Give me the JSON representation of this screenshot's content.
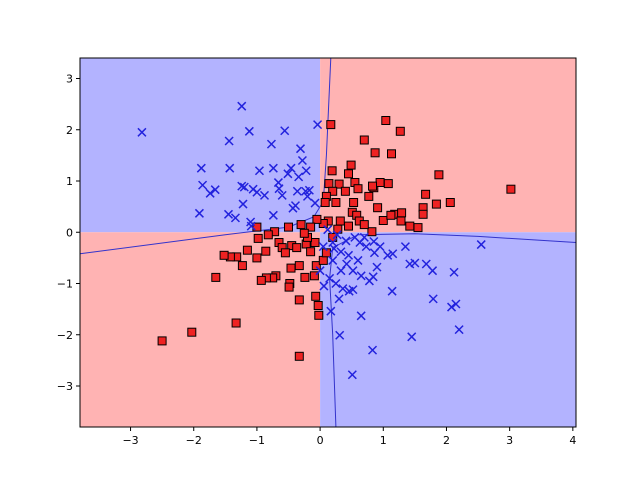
{
  "chart_data": {
    "type": "scatter",
    "title": "",
    "xlabel": "",
    "ylabel": "",
    "xlim": [
      -3.8,
      4.05
    ],
    "ylim": [
      -3.8,
      3.4
    ],
    "xticks": [
      -3,
      -2,
      -1,
      0,
      1,
      2,
      3,
      4
    ],
    "yticks": [
      -3,
      -2,
      -1,
      0,
      1,
      2,
      3
    ],
    "xtick_labels": [
      "−3",
      "−2",
      "−1",
      "0",
      "1",
      "2",
      "3",
      "4"
    ],
    "ytick_labels": [
      "−3",
      "−2",
      "−1",
      "0",
      "1",
      "2",
      "3"
    ],
    "grid": false,
    "legend": "none",
    "decision_regions": {
      "class_negative_color": "#b3b3ff",
      "class_positive_color": "#ffb3b3",
      "boundary_color": "#3333cc",
      "positive_region": "quadrants where x*y > 0 (first and third)",
      "negative_region": "quadrants where x*y < 0 (second and fourth)"
    },
    "series": [
      {
        "marker": "square",
        "color": "#ee2222",
        "edge": "#000000",
        "points": [
          [
            0.17,
            2.1
          ],
          [
            1.04,
            2.18
          ],
          [
            1.27,
            1.97
          ],
          [
            0.7,
            1.8
          ],
          [
            0.87,
            1.55
          ],
          [
            1.13,
            1.53
          ],
          [
            0.49,
            1.31
          ],
          [
            0.45,
            1.14
          ],
          [
            0.19,
            1.2
          ],
          [
            1.88,
            1.12
          ],
          [
            0.14,
            0.95
          ],
          [
            0.3,
            0.94
          ],
          [
            0.55,
            0.97
          ],
          [
            0.85,
            0.87
          ],
          [
            0.95,
            0.97
          ],
          [
            1.08,
            0.95
          ],
          [
            0.83,
            0.9
          ],
          [
            0.6,
            0.85
          ],
          [
            0.4,
            0.8
          ],
          [
            0.2,
            0.8
          ],
          [
            0.1,
            0.7
          ],
          [
            0.25,
            0.58
          ],
          [
            0.53,
            0.58
          ],
          [
            0.77,
            0.7
          ],
          [
            1.67,
            0.74
          ],
          [
            0.08,
            0.58
          ],
          [
            0.51,
            0.39
          ],
          [
            0.91,
            0.48
          ],
          [
            1.63,
            0.48
          ],
          [
            1.84,
            0.55
          ],
          [
            2.06,
            0.58
          ],
          [
            3.02,
            0.84
          ],
          [
            1.18,
            0.35
          ],
          [
            1.29,
            0.38
          ],
          [
            0.32,
            0.22
          ],
          [
            0.13,
            0.22
          ],
          [
            0.28,
            0.06
          ],
          [
            0.45,
            0.12
          ],
          [
            0.58,
            0.33
          ],
          [
            0.62,
            0.22
          ],
          [
            0.82,
            0.01
          ],
          [
            1.0,
            0.23
          ],
          [
            1.28,
            0.22
          ],
          [
            1.42,
            0.12
          ],
          [
            1.55,
            0.09
          ],
          [
            1.63,
            0.35
          ],
          [
            1.12,
            0.33
          ],
          [
            0.7,
            0.15
          ],
          [
            0.05,
            0.17
          ],
          [
            -0.05,
            0.25
          ],
          [
            -0.15,
            0.1
          ],
          [
            -0.3,
            0.15
          ],
          [
            -0.5,
            0.1
          ],
          [
            -0.72,
            0.01
          ],
          [
            -0.65,
            -0.2
          ],
          [
            -0.82,
            -0.05
          ],
          [
            -0.98,
            -0.12
          ],
          [
            -1.15,
            -0.35
          ],
          [
            -1.32,
            -0.48
          ],
          [
            -1.42,
            -0.48
          ],
          [
            -1.52,
            -0.45
          ],
          [
            -0.86,
            -0.37
          ],
          [
            -0.6,
            -0.3
          ],
          [
            -0.45,
            -0.26
          ],
          [
            -0.37,
            -0.3
          ],
          [
            -0.22,
            -0.23
          ],
          [
            -0.08,
            -0.2
          ],
          [
            -0.15,
            -0.38
          ],
          [
            -0.33,
            -0.65
          ],
          [
            -0.46,
            -0.7
          ],
          [
            -0.06,
            -0.65
          ],
          [
            -0.09,
            -0.85
          ],
          [
            -0.24,
            -0.88
          ],
          [
            -0.7,
            -0.85
          ],
          [
            -0.75,
            -0.89
          ],
          [
            -0.85,
            -0.89
          ],
          [
            -0.93,
            -0.94
          ],
          [
            -1.0,
            -0.5
          ],
          [
            -1.23,
            -0.65
          ],
          [
            -1.65,
            -0.88
          ],
          [
            -0.48,
            -1.0
          ],
          [
            -0.49,
            -1.07
          ],
          [
            -0.07,
            -1.25
          ],
          [
            -0.33,
            -1.32
          ],
          [
            -0.03,
            -1.43
          ],
          [
            -0.02,
            -1.62
          ],
          [
            -1.33,
            -1.77
          ],
          [
            -2.03,
            -1.95
          ],
          [
            -2.5,
            -2.12
          ],
          [
            -0.33,
            -2.42
          ],
          [
            0.05,
            -0.55
          ],
          [
            -0.2,
            -0.1
          ],
          [
            -0.55,
            -0.4
          ],
          [
            -1.0,
            0.1
          ],
          [
            -0.25,
            -0.02
          ],
          [
            0.1,
            -0.4
          ],
          [
            0.2,
            -0.1
          ]
        ]
      },
      {
        "marker": "x",
        "color": "#2222dd",
        "points": [
          [
            -1.24,
            2.46
          ],
          [
            -2.82,
            1.95
          ],
          [
            -1.12,
            1.97
          ],
          [
            -0.56,
            1.98
          ],
          [
            -0.04,
            2.1
          ],
          [
            -0.77,
            1.72
          ],
          [
            -0.31,
            1.63
          ],
          [
            -1.44,
            1.78
          ],
          [
            -0.28,
            1.4
          ],
          [
            -1.88,
            1.25
          ],
          [
            -1.43,
            1.25
          ],
          [
            -0.74,
            1.25
          ],
          [
            -0.96,
            1.2
          ],
          [
            -0.46,
            1.25
          ],
          [
            -0.22,
            1.2
          ],
          [
            -0.51,
            1.14
          ],
          [
            -0.34,
            1.08
          ],
          [
            -0.66,
            0.97
          ],
          [
            -1.86,
            0.92
          ],
          [
            -1.74,
            0.76
          ],
          [
            -1.66,
            0.83
          ],
          [
            -1.24,
            0.9
          ],
          [
            -1.2,
            0.88
          ],
          [
            -1.06,
            0.84
          ],
          [
            -1.0,
            0.78
          ],
          [
            -0.88,
            0.72
          ],
          [
            -0.6,
            0.72
          ],
          [
            -0.36,
            0.8
          ],
          [
            -0.23,
            0.8
          ],
          [
            -0.17,
            0.82
          ],
          [
            -1.91,
            0.37
          ],
          [
            -1.45,
            0.35
          ],
          [
            -1.34,
            0.28
          ],
          [
            -1.09,
            0.12
          ],
          [
            -1.1,
            0.2
          ],
          [
            -0.74,
            0.33
          ],
          [
            -0.43,
            0.47
          ],
          [
            -0.39,
            0.52
          ],
          [
            -0.2,
            0.7
          ],
          [
            -0.08,
            0.57
          ],
          [
            -1.22,
            0.55
          ],
          [
            -0.65,
            0.85
          ],
          [
            0.12,
            0.05
          ],
          [
            0.27,
            -0.05
          ],
          [
            0.41,
            -0.17
          ],
          [
            0.55,
            -0.1
          ],
          [
            0.63,
            -0.2
          ],
          [
            0.73,
            -0.28
          ],
          [
            0.85,
            -0.18
          ],
          [
            0.95,
            -0.28
          ],
          [
            1.07,
            -0.45
          ],
          [
            1.35,
            -0.28
          ],
          [
            1.15,
            -0.42
          ],
          [
            1.42,
            -0.62
          ],
          [
            1.5,
            -0.6
          ],
          [
            1.68,
            -0.62
          ],
          [
            1.78,
            -0.75
          ],
          [
            2.12,
            -0.78
          ],
          [
            2.55,
            -0.24
          ],
          [
            0.33,
            -0.38
          ],
          [
            0.2,
            -0.55
          ],
          [
            0.42,
            -0.62
          ],
          [
            0.52,
            -0.75
          ],
          [
            0.65,
            -0.85
          ],
          [
            0.33,
            -0.75
          ],
          [
            0.15,
            -0.9
          ],
          [
            0.06,
            -1.05
          ],
          [
            0.36,
            -1.1
          ],
          [
            0.46,
            -1.15
          ],
          [
            0.52,
            -1.12
          ],
          [
            0.3,
            -1.3
          ],
          [
            0.17,
            -1.54
          ],
          [
            0.78,
            -0.95
          ],
          [
            0.84,
            -0.87
          ],
          [
            0.9,
            -0.68
          ],
          [
            0.86,
            -0.4
          ],
          [
            1.14,
            -1.15
          ],
          [
            1.79,
            -1.3
          ],
          [
            2.08,
            -1.46
          ],
          [
            2.15,
            -1.4
          ],
          [
            0.65,
            -1.63
          ],
          [
            1.45,
            -2.04
          ],
          [
            2.2,
            -1.9
          ],
          [
            0.83,
            -2.3
          ],
          [
            0.31,
            -2.01
          ],
          [
            0.51,
            -2.78
          ],
          [
            0.05,
            -0.28
          ],
          [
            0.22,
            -0.32
          ],
          [
            0.45,
            -0.45
          ],
          [
            0.6,
            -0.55
          ],
          [
            0.25,
            -1.0
          ],
          [
            0.7,
            -0.1
          ],
          [
            0.2,
            -0.2
          ],
          [
            0.0,
            -0.75
          ]
        ]
      }
    ]
  }
}
